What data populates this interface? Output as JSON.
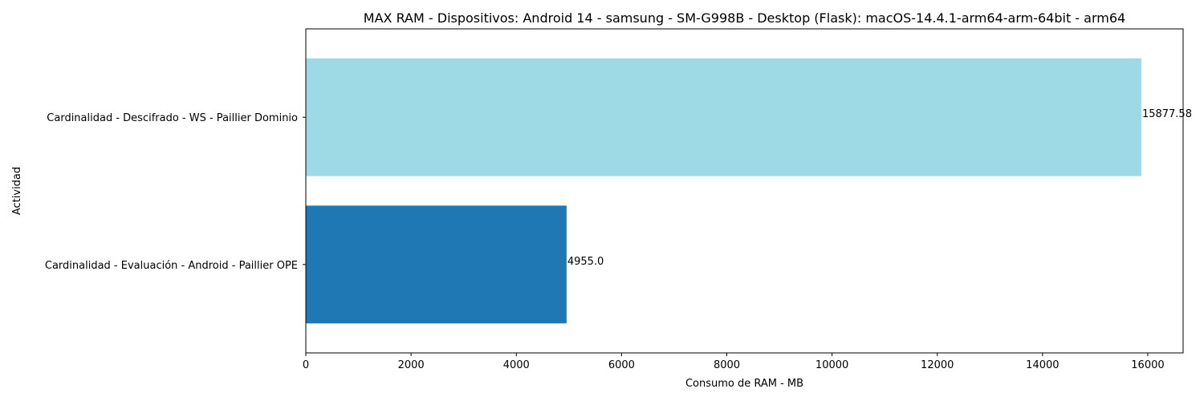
{
  "chart_data": {
    "type": "bar",
    "orientation": "horizontal",
    "title": "MAX RAM - Dispositivos: Android 14 - samsung - SM-G998B - Desktop (Flask): macOS-14.4.1-arm64-arm-64bit - arm64",
    "xlabel": "Consumo de RAM - MB",
    "ylabel": "Actividad",
    "categories": [
      "Cardinalidad - Evaluación - Android - Paillier OPE",
      "Cardinalidad - Descifrado - WS - Paillier Dominio"
    ],
    "values": [
      4955.0,
      15877.58
    ],
    "data_labels": [
      "4955.0",
      "15877.58"
    ],
    "colors": [
      "#1f77b4",
      "#9edae5"
    ],
    "xlim": [
      0,
      16671.5
    ],
    "xticks": [
      0,
      2000,
      4000,
      6000,
      8000,
      10000,
      12000,
      14000,
      16000
    ],
    "grid": false,
    "legend": "none"
  }
}
